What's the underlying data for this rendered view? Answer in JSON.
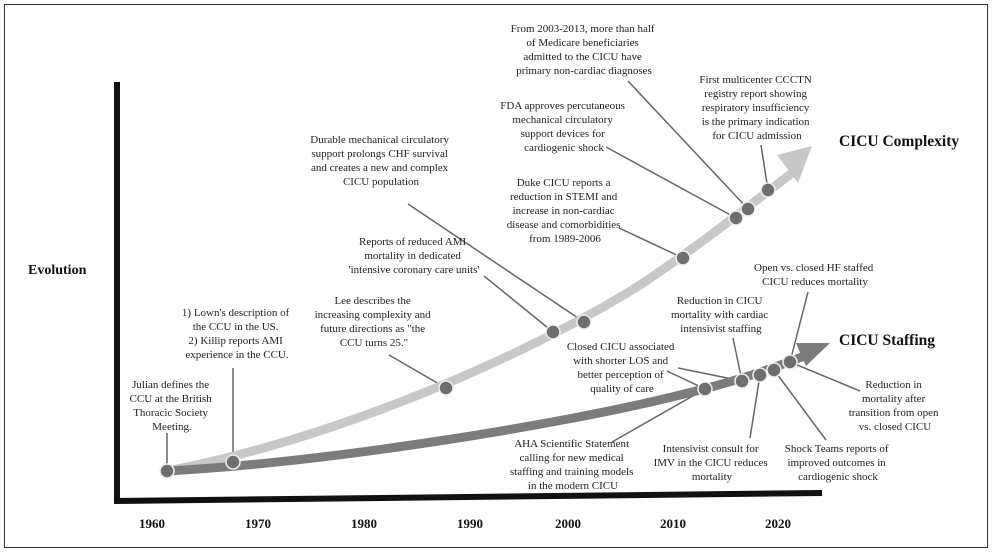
{
  "y_axis_label": "Evolution",
  "x_ticks": [
    "1960",
    "1970",
    "1980",
    "1990",
    "2000",
    "2010",
    "2020"
  ],
  "series": [
    {
      "name": "CICU Complexity",
      "color": "#c8c8c8"
    },
    {
      "name": "CICU Staffing",
      "color": "#7c7c7c"
    }
  ],
  "events": [
    {
      "id": "julian",
      "series": "both",
      "year": 1961,
      "lines": [
        "Julian defines the",
        "CCU at the British",
        "Thoracic Society",
        "Meeting."
      ]
    },
    {
      "id": "lown-killip",
      "series": "complexity",
      "year": 1967,
      "lines": [
        "1) Lown's description of",
        "the CCU in the US.",
        "2) Killip reports AMI",
        "experience in the CCU."
      ]
    },
    {
      "id": "lee",
      "series": "complexity",
      "year": 1988,
      "lines": [
        "Lee describes the",
        "increasing complexity and",
        "future directions as \"the",
        "CCU turns 25.\""
      ]
    },
    {
      "id": "reports-ami",
      "series": "complexity",
      "year": 1998,
      "lines": [
        "Reports of reduced AMI",
        "mortality in dedicated",
        "'intensive coronary care units'"
      ]
    },
    {
      "id": "durable-mcs",
      "series": "complexity",
      "year": 2001,
      "lines": [
        "Durable mechanical circulatory",
        "support prolongs CHF survival",
        "and creates a new and complex",
        "CICU population"
      ]
    },
    {
      "id": "duke",
      "series": "complexity",
      "year": 2011,
      "lines": [
        "Duke CICU reports a",
        "reduction in STEMI and",
        "increase in non-cardiac",
        "disease and comorbidities",
        "from 1989-2006"
      ]
    },
    {
      "id": "fda",
      "series": "complexity",
      "year": 2016,
      "lines": [
        "FDA approves percutaneous",
        "mechanical circulatory",
        "support devices for",
        "cardiogenic shock"
      ]
    },
    {
      "id": "medicare",
      "series": "complexity",
      "year": 2017,
      "lines": [
        "From 2003-2013, more than half",
        "of Medicare beneficiaries",
        "admitted to the CICU have",
        "primary non-cardiac diagnoses"
      ]
    },
    {
      "id": "ccctn",
      "series": "complexity",
      "year": 2019,
      "lines": [
        "First multicenter CCCTN",
        "registry report showing",
        "respiratory insufficiency",
        "is the primary indication",
        "for CICU admission"
      ]
    },
    {
      "id": "aha",
      "series": "staffing",
      "year": 2013,
      "lines": [
        "AHA Scientific Statement",
        "calling for new medical",
        "staffing and training models",
        "in the modern CICU"
      ]
    },
    {
      "id": "closed-cicu",
      "series": "staffing",
      "year": 2013,
      "lines": [
        "Closed CICU associated",
        "with shorter LOS and",
        "better perception of",
        "quality of care"
      ]
    },
    {
      "id": "reduction-intensivist",
      "series": "staffing",
      "year": 2017,
      "lines": [
        "Reduction in CICU",
        "mortality with cardiac",
        "intensivist staffing"
      ]
    },
    {
      "id": "intensivist-consult",
      "series": "staffing",
      "year": 2018,
      "lines": [
        "Intensivist consult for",
        "IMV in the CICU reduces",
        "mortality"
      ]
    },
    {
      "id": "shock-teams",
      "series": "staffing",
      "year": 2019,
      "lines": [
        "Shock Teams reports of",
        "improved outcomes in",
        "cardiogenic shock"
      ]
    },
    {
      "id": "open-closed-hf",
      "series": "staffing",
      "year": 2020,
      "lines": [
        "Open vs. closed HF staffed",
        "CICU reduces mortality"
      ]
    },
    {
      "id": "transition",
      "series": "staffing",
      "year": 2020,
      "lines": [
        "Reduction in",
        "mortality after",
        "transition from open",
        "vs. closed CICU"
      ]
    }
  ]
}
